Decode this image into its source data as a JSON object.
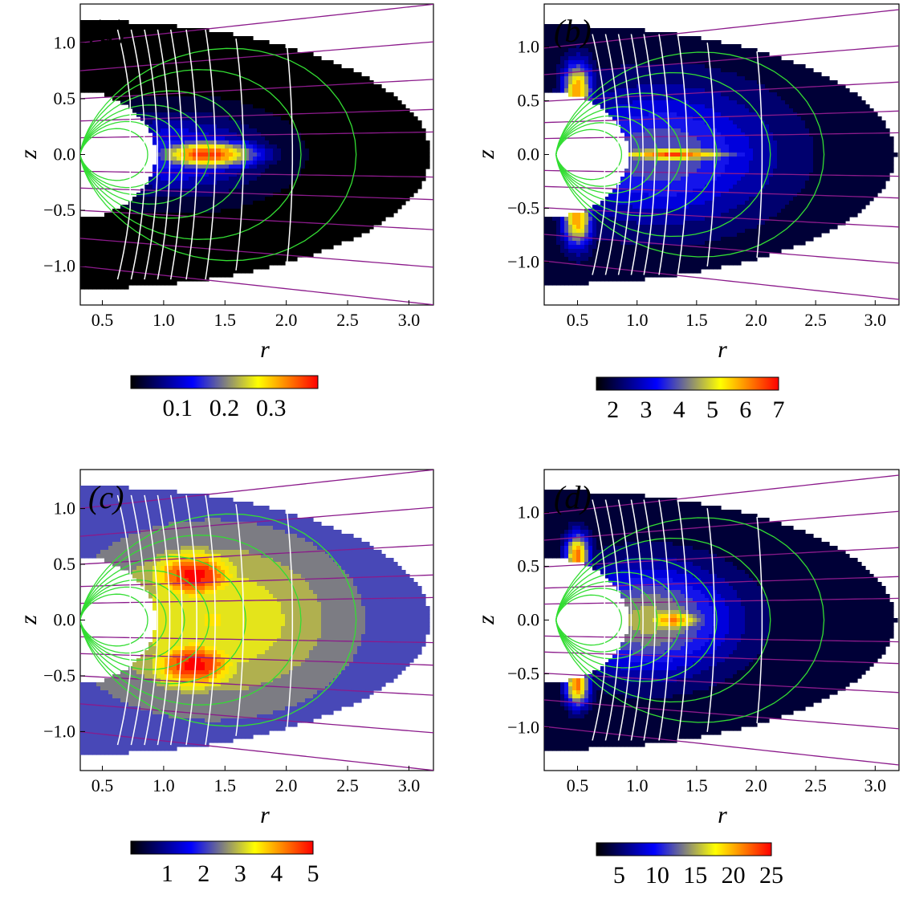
{
  "chart_data": [
    {
      "type": "heatmap",
      "tag": "(a)",
      "xlabel": "r",
      "ylabel": "z",
      "xlim": [
        0.32,
        3.2
      ],
      "ylim": [
        -1.35,
        1.35
      ],
      "xticks": [
        "0.5",
        "1.0",
        "1.5",
        "2.0",
        "2.5",
        "3.0"
      ],
      "yticks": [
        "1.0",
        "0.5",
        "0.0",
        "−0.5",
        "−1.0"
      ],
      "colorbar": {
        "min": 0.0,
        "max": 0.4,
        "ticks": [
          "0.1",
          "0.2",
          "0.3"
        ]
      },
      "peaks": [
        {
          "r": 1.35,
          "z": 0.0,
          "rw": 0.42,
          "zw": 0.13,
          "v": 0.38
        },
        {
          "r": 1.1,
          "z": 0.0,
          "rw": 0.7,
          "zw": 0.35,
          "v": 0.15
        }
      ],
      "outer_value": 0.0,
      "colors": [
        "#000000",
        "#0000ff",
        "#ffff00",
        "#ff0000"
      ]
    },
    {
      "type": "heatmap",
      "tag": "(b)",
      "xlabel": "r",
      "ylabel": "z",
      "xlim": [
        0.22,
        3.2
      ],
      "ylim": [
        -1.4,
        1.4
      ],
      "xticks": [
        "0.5",
        "1.0",
        "1.5",
        "2.0",
        "2.5",
        "3.0"
      ],
      "yticks": [
        "1.0",
        "0.5",
        "0.0",
        "−0.5",
        "−1.0"
      ],
      "colorbar": {
        "min": 1.5,
        "max": 7.0,
        "ticks": [
          "2",
          "3",
          "4",
          "5",
          "6",
          "7"
        ]
      },
      "peaks": [
        {
          "r": 1.3,
          "z": 0.0,
          "rw": 0.55,
          "zw": 0.06,
          "v": 6.5
        },
        {
          "r": 0.5,
          "z": 0.6,
          "rw": 0.12,
          "zw": 0.25,
          "v": 6.0
        },
        {
          "r": 0.5,
          "z": -0.6,
          "rw": 0.12,
          "zw": 0.25,
          "v": 6.0
        },
        {
          "r": 1.2,
          "z": 0.0,
          "rw": 0.9,
          "zw": 0.6,
          "v": 4.0
        }
      ],
      "outer_value": 1.8,
      "colors": [
        "#000000",
        "#0000ff",
        "#ffff00",
        "#ff0000"
      ]
    },
    {
      "type": "heatmap",
      "tag": "(c)",
      "xlabel": "r",
      "ylabel": "z",
      "xlim": [
        0.32,
        3.2
      ],
      "ylim": [
        -1.35,
        1.35
      ],
      "xticks": [
        "0.5",
        "1.0",
        "1.5",
        "2.0",
        "2.5",
        "3.0"
      ],
      "yticks": [
        "1.0",
        "0.5",
        "0.0",
        "−0.5",
        "−1.0"
      ],
      "colorbar": {
        "min": 0.0,
        "max": 5.0,
        "ticks": [
          "1",
          "2",
          "3",
          "4",
          "5"
        ]
      },
      "peaks": [
        {
          "r": 1.25,
          "z": 0.4,
          "rw": 0.35,
          "zw": 0.22,
          "v": 5.0
        },
        {
          "r": 1.25,
          "z": -0.4,
          "rw": 0.35,
          "zw": 0.22,
          "v": 5.0
        },
        {
          "r": 1.4,
          "z": 0.0,
          "rw": 1.1,
          "zw": 0.8,
          "v": 3.4
        }
      ],
      "outer_value": 1.9,
      "colors": [
        "#000000",
        "#0000ff",
        "#ffff00",
        "#ff0000"
      ]
    },
    {
      "type": "heatmap",
      "tag": "(d)",
      "xlabel": "r",
      "ylabel": "z",
      "xlim": [
        0.22,
        3.2
      ],
      "ylim": [
        -1.4,
        1.4
      ],
      "xticks": [
        "0.5",
        "1.0",
        "1.5",
        "2.0",
        "2.5",
        "3.0"
      ],
      "yticks": [
        "1.0",
        "0.5",
        "0.0",
        "−0.5",
        "−1.0"
      ],
      "colorbar": {
        "min": 2.0,
        "max": 25.0,
        "ticks": [
          "5",
          "10",
          "15",
          "20",
          "25"
        ]
      },
      "peaks": [
        {
          "r": 1.3,
          "z": 0.0,
          "rw": 0.3,
          "zw": 0.12,
          "v": 21.0
        },
        {
          "r": 1.1,
          "z": 0.0,
          "rw": 0.7,
          "zw": 0.5,
          "v": 15.0
        },
        {
          "r": 0.5,
          "z": 0.6,
          "rw": 0.1,
          "zw": 0.2,
          "v": 22.0
        },
        {
          "r": 0.5,
          "z": -0.6,
          "rw": 0.1,
          "zw": 0.2,
          "v": 22.0
        }
      ],
      "outer_value": 3.0,
      "colors": [
        "#000000",
        "#0000ff",
        "#ffff00",
        "#ff0000"
      ]
    }
  ],
  "line_colors": {
    "green": "#33dd33",
    "white": "#ffffff",
    "purple": "#8b1a8b"
  }
}
